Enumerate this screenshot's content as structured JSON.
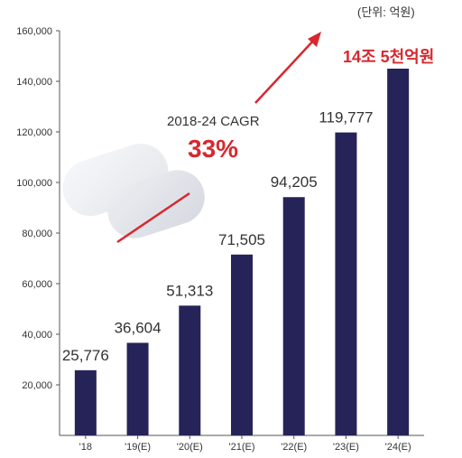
{
  "unit_note": "(단위: 억원)",
  "annotations": {
    "cagr_label": "2018-24 CAGR",
    "cagr_value": "33%",
    "final_value_label": "14조 5천억원",
    "accent_color": "#d7282f"
  },
  "colors": {
    "bar": "#252358",
    "axis": "#555555",
    "accent": "#d7282f"
  },
  "chart_data": {
    "type": "bar",
    "title": "",
    "xlabel": "",
    "ylabel": "",
    "categories": [
      "'18",
      "'19(E)",
      "'20(E)",
      "'21(E)",
      "'22(E)",
      "'23(E)",
      "'24(E)"
    ],
    "values": [
      25776,
      36604,
      51313,
      71505,
      94205,
      119777,
      145000
    ],
    "data_labels": [
      "25,776",
      "36,604",
      "51,313",
      "71,505",
      "94,205",
      "119,777",
      ""
    ],
    "ylim": [
      0,
      160000
    ],
    "yticks": [
      20000,
      40000,
      60000,
      80000,
      100000,
      120000,
      140000,
      160000
    ],
    "ytick_labels": [
      "20,000",
      "40,000",
      "60,000",
      "80,000",
      "100,000",
      "120,000",
      "140,000",
      "160,000"
    ],
    "grid": false,
    "legend": "none"
  }
}
